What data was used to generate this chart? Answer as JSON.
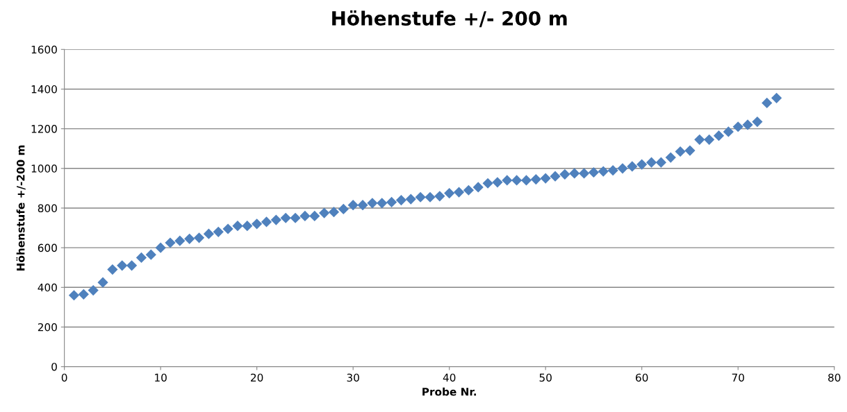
{
  "chart_data": {
    "type": "scatter",
    "title": "Höhenstufe +/- 200 m",
    "xlabel": "Probe Nr.",
    "ylabel": "Höhenstufe +/-200 m",
    "x": [
      1,
      2,
      3,
      4,
      5,
      6,
      7,
      8,
      9,
      10,
      11,
      12,
      13,
      14,
      15,
      16,
      17,
      18,
      19,
      20,
      21,
      22,
      23,
      24,
      25,
      26,
      27,
      28,
      29,
      30,
      31,
      32,
      33,
      34,
      35,
      36,
      37,
      38,
      39,
      40,
      41,
      42,
      43,
      44,
      45,
      46,
      47,
      48,
      49,
      50,
      51,
      52,
      53,
      54,
      55,
      56,
      57,
      58,
      59,
      60,
      61,
      62,
      63,
      64,
      65,
      66,
      67,
      68,
      69,
      70,
      71,
      72,
      73,
      74
    ],
    "series": [
      {
        "color": "#4f81bd",
        "values": [
          360,
          365,
          385,
          425,
          490,
          510,
          510,
          550,
          565,
          600,
          625,
          635,
          645,
          650,
          670,
          680,
          695,
          710,
          710,
          720,
          730,
          740,
          750,
          750,
          760,
          760,
          775,
          780,
          795,
          815,
          815,
          825,
          825,
          830,
          840,
          845,
          855,
          855,
          860,
          875,
          880,
          890,
          905,
          925,
          930,
          940,
          940,
          940,
          945,
          950,
          960,
          970,
          975,
          975,
          980,
          985,
          990,
          1000,
          1010,
          1020,
          1030,
          1030,
          1055,
          1085,
          1090,
          1145,
          1145,
          1165,
          1185,
          1210,
          1220,
          1235,
          1330,
          1355
        ]
      }
    ],
    "xlim": [
      0,
      80
    ],
    "xticks": [
      0,
      10,
      20,
      30,
      40,
      50,
      60,
      70,
      80
    ],
    "ylim": [
      0,
      1600
    ],
    "yticks": [
      0,
      200,
      400,
      600,
      800,
      1000,
      1200,
      1400,
      1600
    ],
    "grid": "y",
    "marker": "diamond",
    "legend": false
  }
}
